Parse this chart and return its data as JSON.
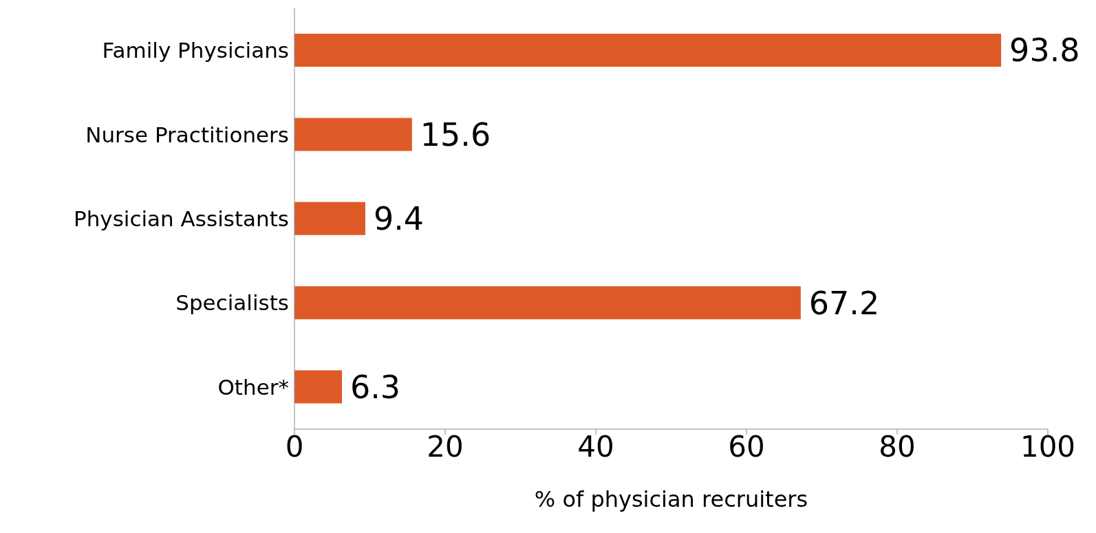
{
  "chart_data": {
    "type": "bar",
    "orientation": "horizontal",
    "xlabel": "% of physician recruiters",
    "categories": [
      "Family Physicians",
      "Nurse Practitioners",
      "Physician Assistants",
      "Specialists",
      "Other*"
    ],
    "values": [
      93.8,
      15.6,
      9.4,
      67.2,
      6.3
    ],
    "color": "#dd5a26",
    "xlim": [
      0,
      100
    ],
    "xticks": [
      0,
      20,
      40,
      60,
      80,
      100
    ],
    "data_labels": true,
    "grid": false,
    "legend": false
  }
}
